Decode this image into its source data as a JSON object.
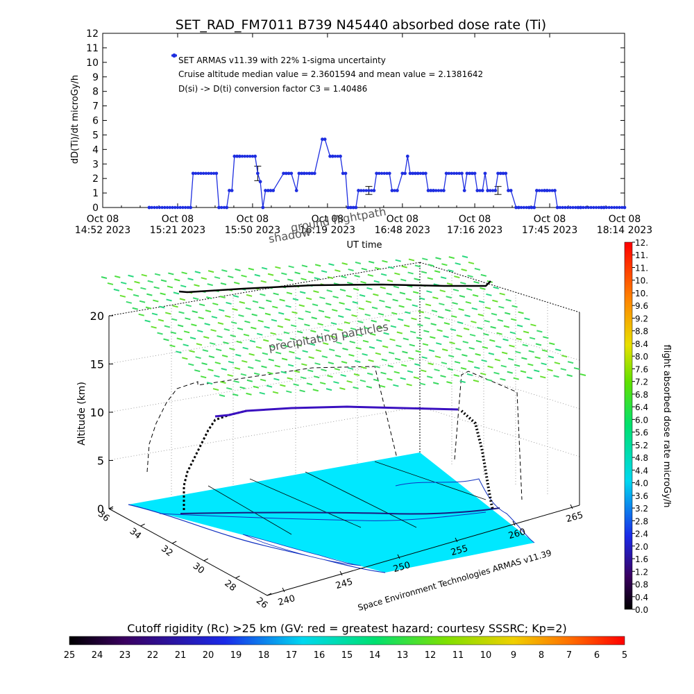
{
  "title": "SET_RAD_FM7011   B739 N45440 absorbed dose rate (Ti)",
  "chart_data": [
    {
      "type": "line",
      "title": "SET_RAD_FM7011   B739 N45440 absorbed dose rate (Ti)",
      "ylabel": "dD(Ti)/dt microGy/h",
      "xlabel": "UT time",
      "ylim": [
        0,
        12
      ],
      "yticks": [
        "0",
        "1",
        "2",
        "3",
        "4",
        "5",
        "6",
        "7",
        "8",
        "9",
        "10",
        "11",
        "12"
      ],
      "xlim_minutes": [
        0,
        202
      ],
      "xticks": [
        {
          "minute": 0,
          "line1": "Oct 08",
          "line2": "14:52 2023"
        },
        {
          "minute": 29,
          "line1": "Oct 08",
          "line2": "15:21 2023"
        },
        {
          "minute": 58,
          "line1": "Oct 08",
          "line2": "15:50 2023"
        },
        {
          "minute": 87,
          "line1": "Oct 08",
          "line2": "16:19 2023"
        },
        {
          "minute": 116,
          "line1": "Oct 08",
          "line2": "16:48 2023"
        },
        {
          "minute": 144,
          "line1": "Oct 08",
          "line2": "17:16 2023"
        },
        {
          "minute": 173,
          "line1": "Oct 08",
          "line2": "17:45 2023"
        },
        {
          "minute": 202,
          "line1": "Oct 08",
          "line2": "18:14 2023"
        }
      ],
      "legend": {
        "marker_color": "#1e2ee0",
        "lines": [
          "SET ARMAS v11.39 with 22% 1-sigma uncertainty",
          "Cruise altitude median value = 2.3601594 and mean value = 2.1381642",
          "D(si) -> D(ti) conversion factor C3 = 1.40486"
        ]
      },
      "series": [
        {
          "color": "#1e2ee0",
          "x_minutes": [
            18,
            34,
            35,
            44,
            45,
            48,
            49,
            50,
            51,
            52,
            53,
            59,
            60,
            61,
            62,
            63,
            64,
            65,
            66,
            70,
            71,
            72,
            73,
            75,
            76,
            77,
            78,
            80,
            81,
            82,
            85,
            86,
            88,
            89,
            92,
            93,
            94,
            95,
            96,
            97,
            98,
            99,
            105,
            106,
            111,
            112,
            114,
            116,
            117,
            118,
            119,
            120,
            121,
            122,
            124,
            125,
            126,
            127,
            128,
            132,
            133,
            139,
            140,
            141,
            142,
            143,
            144,
            145,
            147,
            148,
            149,
            152,
            153,
            154,
            155,
            156,
            157,
            158,
            160,
            161,
            165,
            166,
            167,
            168,
            171,
            172,
            175,
            176,
            184,
            185,
            193,
            194,
            202
          ],
          "values": [
            0,
            0,
            2.35,
            2.35,
            0,
            0,
            1.17,
            1.17,
            3.53,
            3.53,
            3.53,
            3.53,
            2.35,
            1.78,
            0,
            1.17,
            1.17,
            1.17,
            1.17,
            2.35,
            2.35,
            2.35,
            2.35,
            1.17,
            2.35,
            2.35,
            2.35,
            2.35,
            2.35,
            2.35,
            4.7,
            4.7,
            3.53,
            3.53,
            3.53,
            2.35,
            2.35,
            0,
            0,
            0,
            0,
            1.17,
            1.17,
            2.35,
            2.35,
            1.17,
            1.17,
            2.35,
            2.35,
            3.53,
            2.35,
            2.35,
            2.35,
            2.35,
            2.35,
            2.35,
            1.17,
            1.17,
            1.17,
            1.17,
            2.35,
            2.35,
            1.17,
            2.35,
            2.35,
            2.35,
            2.35,
            1.17,
            1.17,
            2.35,
            1.17,
            1.17,
            2.35,
            2.35,
            2.35,
            2.35,
            1.17,
            1.17,
            0,
            0,
            0,
            0,
            0,
            1.17,
            1.17,
            1.17,
            1.17,
            0,
            0,
            0,
            0,
            0,
            0
          ]
        }
      ],
      "error_bars": [
        {
          "minute": 60,
          "value": 2.35,
          "low": 1.85,
          "high": 2.85
        },
        {
          "minute": 103,
          "value": 1.17,
          "low": 0.9,
          "high": 1.45
        },
        {
          "minute": 153,
          "value": 1.17,
          "low": 0.9,
          "high": 1.45
        }
      ]
    },
    {
      "type": "surface-3d",
      "zlabel": "Altitude (km)",
      "zticks": [
        "0",
        "5",
        "10",
        "15",
        "20"
      ],
      "lat_ticks": [
        "36",
        "34",
        "32",
        "30",
        "28",
        "26"
      ],
      "lon_ticks": [
        "240",
        "245",
        "250",
        "255",
        "260",
        "265"
      ],
      "annotations": [
        "shadow",
        "ground flightpath",
        "precipitating particles",
        "Space Environment Technologies ARMAS v11.39"
      ],
      "cruise_altitude_km": 10,
      "particle_layer_altitude_km": 20,
      "colorbar_right": {
        "label": "flight absorbed dose rate microGy/h",
        "min": 0.0,
        "max": 12.0,
        "ticks": [
          "0.0",
          "0.4",
          "0.8",
          "1.2",
          "1.6",
          "2.0",
          "2.4",
          "2.8",
          "3.2",
          "3.6",
          "4.0",
          "4.4",
          "4.8",
          "5.2",
          "5.6",
          "6.0",
          "6.4",
          "6.8",
          "7.2",
          "7.6",
          "8.0",
          "8.4",
          "8.8",
          "9.2",
          "9.6",
          "10.",
          "10.",
          "11.",
          "11.",
          "12."
        ]
      },
      "colorbar_bottom": {
        "label": "Cutoff rigidity (Rc) >25 km (GV: red = greatest hazard; courtesy SSSRC; Kp=2)",
        "ticks": [
          "25",
          "24",
          "23",
          "22",
          "21",
          "20",
          "19",
          "18",
          "17",
          "16",
          "15",
          "14",
          "13",
          "12",
          "11",
          "10",
          "9",
          "8",
          "7",
          "6",
          "5"
        ]
      }
    }
  ]
}
